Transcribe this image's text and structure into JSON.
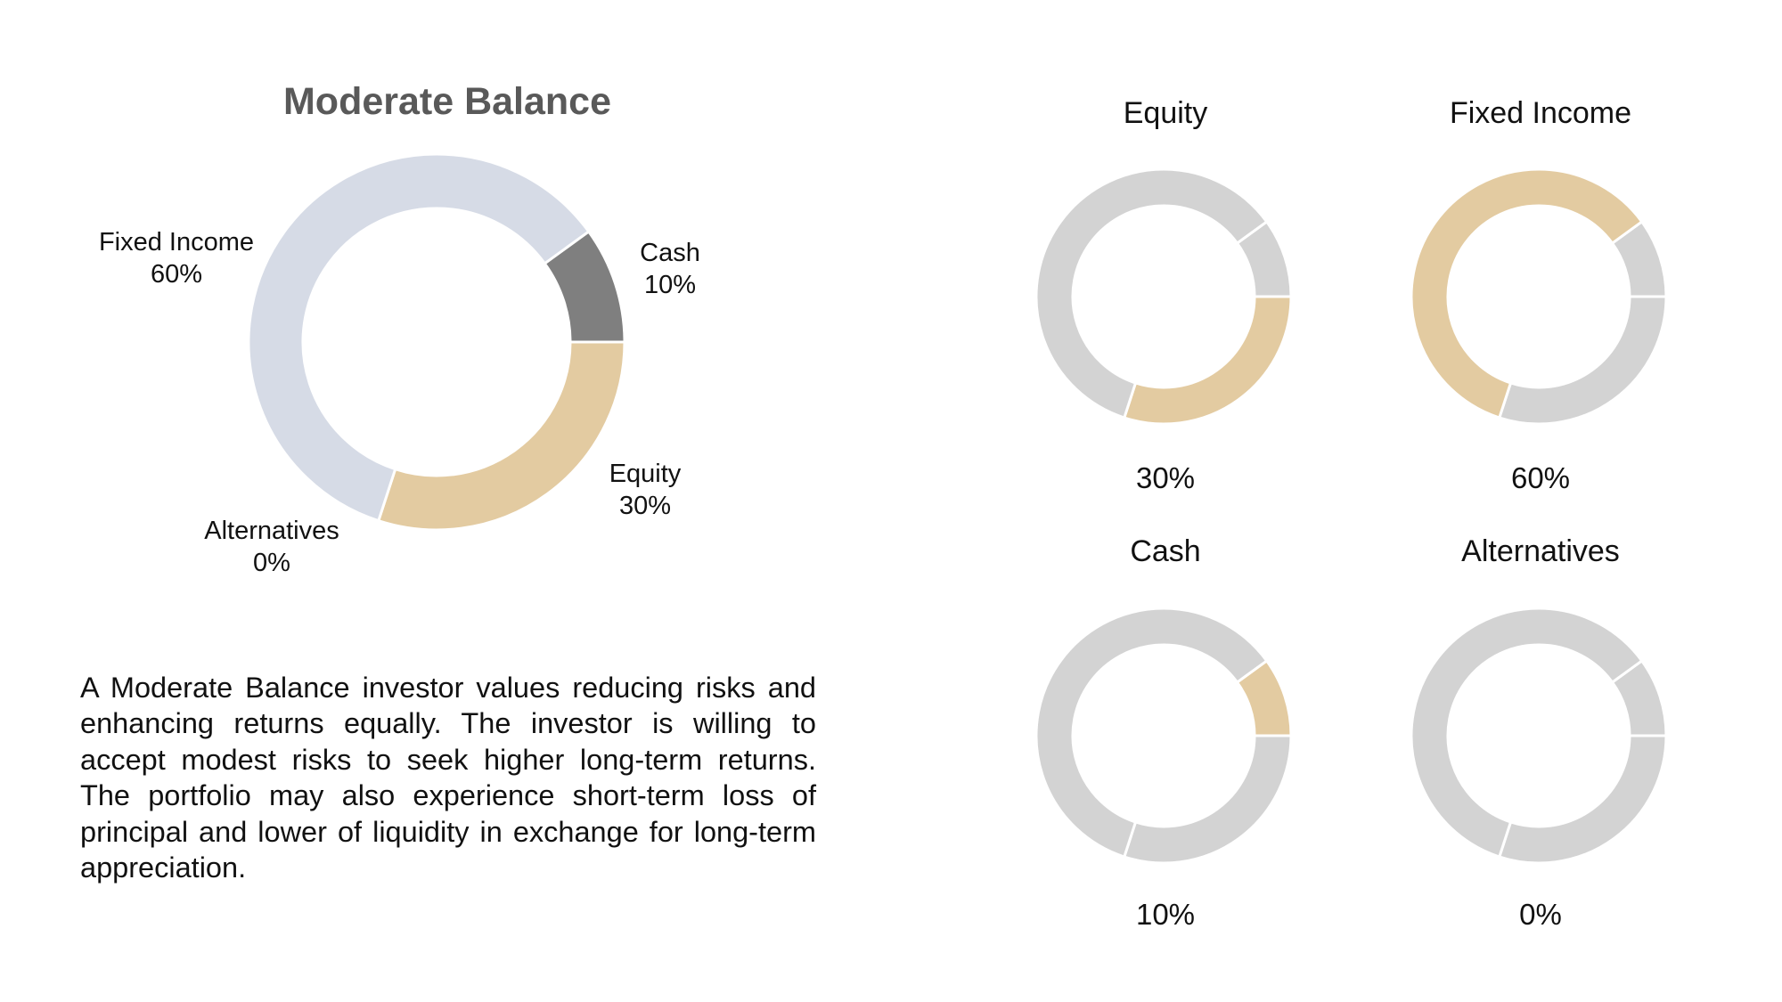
{
  "chart_data": [
    {
      "type": "pie",
      "variant": "donut",
      "title": "Moderate Balance",
      "slices": [
        {
          "label": "Cash",
          "value": 10,
          "value_label": "10%",
          "color": "#7f7f7f"
        },
        {
          "label": "Equity",
          "value": 30,
          "value_label": "30%",
          "color": "#e3cba1"
        },
        {
          "label": "Alternatives",
          "value": 0,
          "value_label": "0%",
          "color": "#d6dbe6"
        },
        {
          "label": "Fixed Income",
          "value": 60,
          "value_label": "60%",
          "color": "#d6dbe6"
        }
      ]
    },
    {
      "type": "pie",
      "variant": "donut",
      "title": "Equity",
      "value": 30,
      "value_label": "30%",
      "highlight_color": "#e3cba1",
      "base_color": "#d3d3d3"
    },
    {
      "type": "pie",
      "variant": "donut",
      "title": "Fixed Income",
      "value": 60,
      "value_label": "60%",
      "highlight_color": "#e3cba1",
      "base_color": "#d3d3d3"
    },
    {
      "type": "pie",
      "variant": "donut",
      "title": "Cash",
      "value": 10,
      "value_label": "10%",
      "highlight_color": "#e3cba1",
      "base_color": "#d3d3d3"
    },
    {
      "type": "pie",
      "variant": "donut",
      "title": "Alternatives",
      "value": 0,
      "value_label": "0%",
      "highlight_color": "#e3cba1",
      "base_color": "#d3d3d3"
    }
  ],
  "description": "A Moderate Balance investor values reducing risks and enhancing returns equally. The investor is willing to accept modest risks to seek higher long-term returns. The portfolio may also experience short-term loss of principal and lower of liquidity in exchange for long-term appreciation."
}
